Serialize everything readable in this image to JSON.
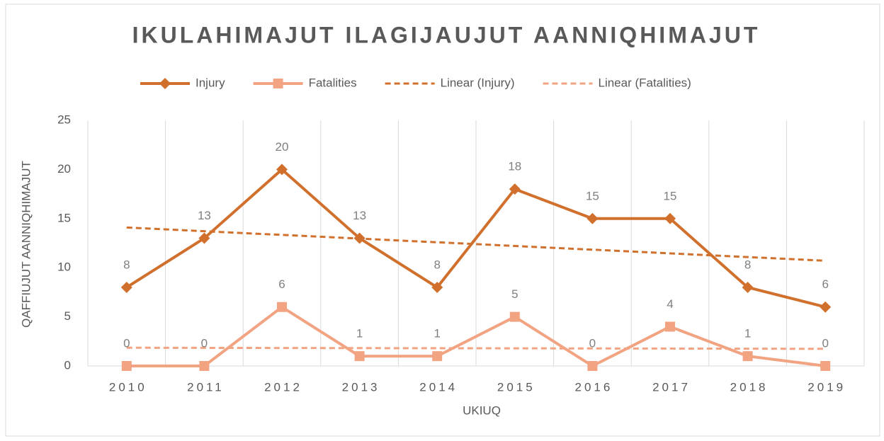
{
  "chart_data": {
    "type": "line",
    "title": "IKULAHIMAJUT ILAGIJAUJUT AANNIQHIMAJUT",
    "x_label": "UKIUQ",
    "y_label": "QAFFIUJUT AANNIQHIMAJUT",
    "categories": [
      "2010",
      "2011",
      "2012",
      "2013",
      "2014",
      "2015",
      "2016",
      "2017",
      "2018",
      "2019"
    ],
    "series": [
      {
        "name": "Injury",
        "color": "#d0702c",
        "marker": "diamond",
        "values": [
          8,
          13,
          20,
          13,
          8,
          18,
          15,
          15,
          8,
          6
        ],
        "trendline": {
          "type": "linear",
          "name": "Linear (Injury)"
        }
      },
      {
        "name": "Fatalities",
        "color": "#f2a382",
        "marker": "square",
        "values": [
          0,
          0,
          6,
          1,
          1,
          5,
          0,
          4,
          1,
          0
        ],
        "trendline": {
          "type": "linear",
          "name": "Linear (Fatalities)"
        }
      }
    ],
    "ylim": [
      0,
      25
    ],
    "yticks": [
      0,
      5,
      10,
      15,
      20,
      25
    ],
    "grid": "vertical",
    "legend": "top",
    "data_labels": true
  }
}
